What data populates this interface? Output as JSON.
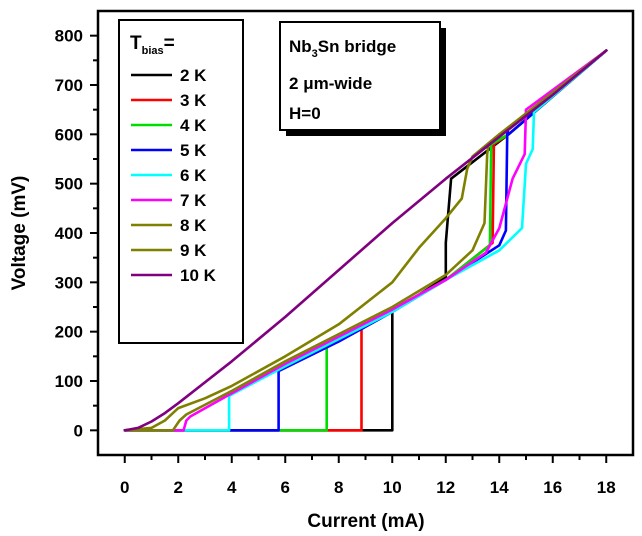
{
  "chart_data": {
    "type": "line",
    "title": "",
    "xlabel": "Current (mA)",
    "ylabel": "Voltage (mV)",
    "xlim": [
      -1,
      19
    ],
    "ylim": [
      -50,
      850
    ],
    "xticks": [
      0,
      2,
      4,
      6,
      8,
      10,
      12,
      14,
      16,
      18
    ],
    "yticks": [
      0,
      100,
      200,
      300,
      400,
      500,
      600,
      700,
      800
    ],
    "grid": false,
    "legend": {
      "placement": "top-left",
      "title_main": "T",
      "title_sub": "bias",
      "title_suffix": "="
    },
    "info_box": {
      "line1_main": "Nb",
      "line1_sub": "3",
      "line1_suffix": "Sn bridge",
      "line2_number": "2 ",
      "line2_unit": "μm-wide",
      "line3": "H=0"
    },
    "series": [
      {
        "name": "2 K",
        "color": "#000000",
        "x": [
          0,
          10.0,
          10.0,
          12.0,
          12.0,
          12.2,
          14.35,
          18.0
        ],
        "y": [
          0,
          0,
          240,
          310,
          380,
          510,
          600,
          770
        ]
      },
      {
        "name": "3 K",
        "color": "#ff0000",
        "x": [
          0,
          8.85,
          8.85,
          10.0,
          12.0,
          13.75,
          13.8,
          14.35,
          18.0
        ],
        "y": [
          0,
          0,
          205,
          245,
          305,
          380,
          580,
          600,
          770
        ]
      },
      {
        "name": "4 K",
        "color": "#00dd00",
        "x": [
          0,
          7.55,
          7.55,
          10.0,
          12.0,
          13.65,
          13.7,
          14.35,
          18.0
        ],
        "y": [
          0,
          0,
          170,
          245,
          305,
          375,
          580,
          600,
          770
        ]
      },
      {
        "name": "5 K",
        "color": "#0000ff",
        "x": [
          0,
          5.75,
          5.75,
          8.0,
          10.0,
          12.0,
          14.0,
          14.25,
          14.3,
          14.35,
          18.0
        ],
        "y": [
          0,
          0,
          120,
          180,
          240,
          305,
          375,
          405,
          610,
          600,
          770
        ]
      },
      {
        "name": "6 K",
        "color": "#00ffff",
        "x": [
          0,
          3.9,
          3.9,
          6.0,
          8.0,
          10.0,
          12.0,
          14.0,
          14.85,
          15.0,
          15.25,
          15.3,
          18.0
        ],
        "y": [
          0,
          0,
          70,
          130,
          185,
          240,
          305,
          365,
          410,
          540,
          570,
          645,
          770
        ]
      },
      {
        "name": "7 K",
        "color": "#ff00ff",
        "x": [
          0,
          2.2,
          2.3,
          2.45,
          4.0,
          6.0,
          8.0,
          10.0,
          12.0,
          13.5,
          14.0,
          14.5,
          14.95,
          15.0,
          18.0
        ],
        "y": [
          0,
          0,
          20,
          28,
          75,
          135,
          190,
          245,
          305,
          360,
          410,
          510,
          560,
          650,
          770
        ]
      },
      {
        "name": "8 K",
        "color": "#808000",
        "x": [
          0,
          1.8,
          2.05,
          2.3,
          4.0,
          6.0,
          8.0,
          10.0,
          12.0,
          13.0,
          13.45,
          13.55,
          13.6,
          18.0
        ],
        "y": [
          0,
          0,
          20,
          32,
          80,
          140,
          195,
          250,
          315,
          365,
          420,
          560,
          580,
          770
        ]
      },
      {
        "name": "9 K",
        "color": "#808000",
        "x": [
          0,
          1.0,
          1.5,
          1.8,
          2.0,
          3.0,
          4.0,
          6.0,
          8.0,
          10.0,
          11.0,
          12.0,
          12.6,
          12.8,
          13.0,
          14.0,
          18.0
        ],
        "y": [
          0,
          5,
          20,
          35,
          45,
          65,
          90,
          150,
          215,
          300,
          370,
          430,
          470,
          530,
          555,
          600,
          770
        ]
      },
      {
        "name": "10 K",
        "color": "#800080",
        "x": [
          0,
          0.5,
          1.0,
          1.5,
          2.0,
          4.0,
          6.0,
          8.0,
          10.0,
          12.0,
          14.0,
          16.0,
          18.0
        ],
        "y": [
          0,
          5,
          18,
          35,
          55,
          140,
          230,
          325,
          420,
          510,
          595,
          680,
          770
        ]
      }
    ]
  }
}
